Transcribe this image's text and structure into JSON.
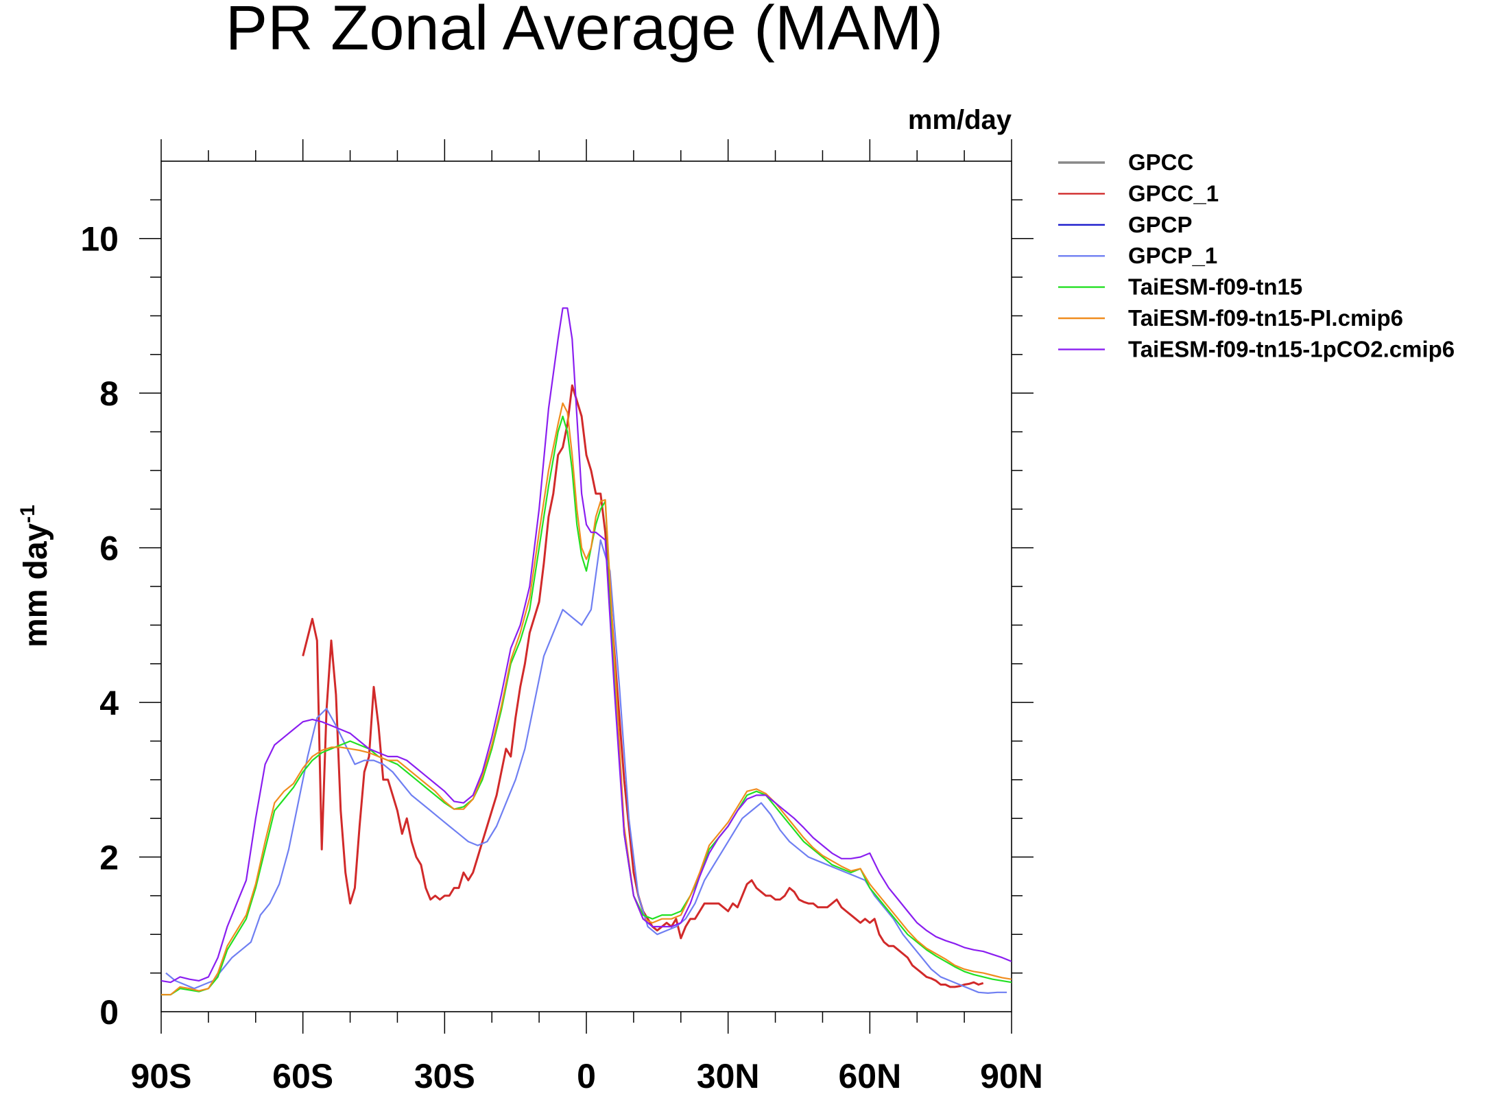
{
  "chart_data": {
    "type": "line",
    "title": "PR Zonal Average (MAM)",
    "units_label": "mm/day",
    "ylabel": "mm day",
    "ylabel_superscript": "-1",
    "xlim": [
      -90,
      90
    ],
    "ylim": [
      0,
      11
    ],
    "x_ticks": [
      {
        "value": -90,
        "label": "90S"
      },
      {
        "value": -60,
        "label": "60S"
      },
      {
        "value": -30,
        "label": "30S"
      },
      {
        "value": 0,
        "label": "0"
      },
      {
        "value": 30,
        "label": "30N"
      },
      {
        "value": 60,
        "label": "60N"
      },
      {
        "value": 90,
        "label": "90N"
      }
    ],
    "y_ticks": [
      {
        "value": 0,
        "label": "0"
      },
      {
        "value": 2,
        "label": "2"
      },
      {
        "value": 4,
        "label": "4"
      },
      {
        "value": 6,
        "label": "6"
      },
      {
        "value": 8,
        "label": "8"
      },
      {
        "value": 10,
        "label": "10"
      }
    ],
    "legend_position": "top-right outside",
    "series": [
      {
        "name": "GPCC",
        "color": "#888888",
        "x": [],
        "y": []
      },
      {
        "name": "GPCC_1",
        "color": "#d12a2a",
        "x": [
          -60,
          -58,
          -57,
          -56,
          -55,
          -54,
          -53,
          -52,
          -51,
          -50,
          -49,
          -48,
          -47,
          -46,
          -45,
          -44,
          -43,
          -42,
          -41,
          -40,
          -39,
          -38,
          -37,
          -36,
          -35,
          -34,
          -33,
          -32,
          -31,
          -30,
          -29,
          -28,
          -27,
          -26,
          -25,
          -24,
          -23,
          -22,
          -21,
          -20,
          -19,
          -18,
          -17,
          -16,
          -15,
          -14,
          -13,
          -12,
          -11,
          -10,
          -9,
          -8,
          -7,
          -6,
          -5,
          -4,
          -3,
          -2,
          -1,
          0,
          1,
          2,
          3,
          4,
          5,
          6,
          7,
          8,
          9,
          10,
          11,
          12,
          13,
          14,
          15,
          16,
          17,
          18,
          19,
          20,
          21,
          22,
          23,
          24,
          25,
          26,
          27,
          28,
          29,
          30,
          31,
          32,
          33,
          34,
          35,
          36,
          37,
          38,
          39,
          40,
          41,
          42,
          43,
          44,
          45,
          46,
          47,
          48,
          49,
          50,
          51,
          52,
          53,
          54,
          55,
          56,
          57,
          58,
          59,
          60,
          61,
          62,
          63,
          64,
          65,
          66,
          67,
          68,
          69,
          70,
          71,
          72,
          73,
          74,
          75,
          76,
          77,
          78,
          79,
          80,
          81,
          82,
          83,
          84
        ],
        "y": [
          4.6,
          5.08,
          4.8,
          2.1,
          3.9,
          4.8,
          4.1,
          2.6,
          1.8,
          1.4,
          1.6,
          2.4,
          3.1,
          3.3,
          4.2,
          3.7,
          3.0,
          3.0,
          2.8,
          2.6,
          2.3,
          2.5,
          2.2,
          2.0,
          1.9,
          1.6,
          1.45,
          1.5,
          1.45,
          1.5,
          1.5,
          1.6,
          1.6,
          1.8,
          1.7,
          1.8,
          2.0,
          2.2,
          2.4,
          2.6,
          2.8,
          3.1,
          3.4,
          3.3,
          3.8,
          4.2,
          4.5,
          4.9,
          5.1,
          5.3,
          5.8,
          6.4,
          6.7,
          7.2,
          7.3,
          7.6,
          8.1,
          7.9,
          7.7,
          7.2,
          7.0,
          6.7,
          6.7,
          6.2,
          5.4,
          4.6,
          3.8,
          3.0,
          2.4,
          1.8,
          1.5,
          1.3,
          1.2,
          1.1,
          1.05,
          1.1,
          1.15,
          1.1,
          1.2,
          0.95,
          1.1,
          1.2,
          1.2,
          1.3,
          1.4,
          1.4,
          1.4,
          1.4,
          1.35,
          1.3,
          1.4,
          1.35,
          1.5,
          1.65,
          1.7,
          1.6,
          1.55,
          1.5,
          1.5,
          1.45,
          1.45,
          1.5,
          1.6,
          1.55,
          1.45,
          1.42,
          1.4,
          1.4,
          1.35,
          1.35,
          1.35,
          1.4,
          1.45,
          1.35,
          1.3,
          1.25,
          1.2,
          1.15,
          1.2,
          1.15,
          1.2,
          1.0,
          0.9,
          0.85,
          0.85,
          0.8,
          0.75,
          0.7,
          0.6,
          0.55,
          0.5,
          0.45,
          0.43,
          0.4,
          0.35,
          0.35,
          0.32,
          0.32,
          0.33,
          0.35,
          0.36,
          0.38,
          0.35,
          0.37
        ]
      },
      {
        "name": "GPCP",
        "color": "#1a1acc",
        "x": [],
        "y": []
      },
      {
        "name": "GPCP_1",
        "color": "#6f7ff2",
        "x": [
          -89,
          -87,
          -85,
          -83,
          -81,
          -79,
          -77,
          -75,
          -73,
          -71,
          -69,
          -67,
          -65,
          -63,
          -61,
          -59,
          -57,
          -55,
          -53,
          -51,
          -49,
          -47,
          -45,
          -43,
          -41,
          -39,
          -37,
          -35,
          -33,
          -31,
          -29,
          -27,
          -25,
          -23,
          -21,
          -19,
          -17,
          -15,
          -13,
          -11,
          -9,
          -7,
          -5,
          -3,
          -1,
          1,
          3,
          5,
          7,
          9,
          11,
          13,
          15,
          17,
          19,
          21,
          23,
          25,
          27,
          29,
          31,
          33,
          35,
          37,
          39,
          41,
          43,
          45,
          47,
          49,
          51,
          53,
          55,
          57,
          59,
          61,
          63,
          65,
          67,
          69,
          71,
          73,
          75,
          77,
          79,
          81,
          83,
          85,
          87,
          89
        ],
        "y": [
          0.5,
          0.4,
          0.35,
          0.3,
          0.35,
          0.4,
          0.55,
          0.7,
          0.8,
          0.9,
          1.25,
          1.4,
          1.65,
          2.1,
          2.7,
          3.3,
          3.8,
          3.92,
          3.7,
          3.45,
          3.2,
          3.25,
          3.25,
          3.2,
          3.1,
          2.95,
          2.8,
          2.7,
          2.6,
          2.5,
          2.4,
          2.3,
          2.2,
          2.15,
          2.2,
          2.4,
          2.7,
          3.0,
          3.4,
          4.0,
          4.6,
          4.9,
          5.2,
          5.1,
          5.0,
          5.2,
          6.1,
          5.7,
          4.2,
          2.5,
          1.5,
          1.1,
          1.0,
          1.05,
          1.1,
          1.2,
          1.4,
          1.7,
          1.9,
          2.1,
          2.3,
          2.5,
          2.6,
          2.7,
          2.55,
          2.35,
          2.2,
          2.1,
          2.0,
          1.95,
          1.9,
          1.85,
          1.8,
          1.75,
          1.7,
          1.5,
          1.35,
          1.2,
          1.0,
          0.85,
          0.7,
          0.55,
          0.45,
          0.4,
          0.35,
          0.3,
          0.25,
          0.24,
          0.25,
          0.25
        ]
      },
      {
        "name": "TaiESM-f09-tn15",
        "color": "#22e022",
        "x": [
          -90,
          -88,
          -86,
          -84,
          -82,
          -80,
          -78,
          -76,
          -74,
          -72,
          -70,
          -68,
          -66,
          -64,
          -62,
          -60,
          -58,
          -56,
          -54,
          -52,
          -50,
          -48,
          -46,
          -44,
          -42,
          -40,
          -38,
          -36,
          -34,
          -32,
          -30,
          -28,
          -26,
          -24,
          -22,
          -20,
          -18,
          -16,
          -14,
          -12,
          -10,
          -8,
          -6,
          -5,
          -4,
          -3,
          -2,
          -1,
          0,
          1,
          2,
          3,
          4,
          6,
          8,
          10,
          12,
          14,
          16,
          18,
          20,
          22,
          24,
          26,
          28,
          30,
          32,
          34,
          36,
          38,
          40,
          42,
          44,
          46,
          48,
          50,
          52,
          54,
          56,
          58,
          60,
          62,
          64,
          66,
          68,
          70,
          72,
          74,
          76,
          78,
          80,
          82,
          84,
          86,
          88,
          90
        ],
        "y": [
          0.22,
          0.22,
          0.3,
          0.28,
          0.26,
          0.3,
          0.45,
          0.8,
          1.0,
          1.2,
          1.6,
          2.1,
          2.6,
          2.75,
          2.9,
          3.1,
          3.25,
          3.35,
          3.4,
          3.45,
          3.5,
          3.45,
          3.4,
          3.3,
          3.25,
          3.2,
          3.1,
          3.0,
          2.9,
          2.8,
          2.7,
          2.62,
          2.65,
          2.75,
          3.0,
          3.4,
          3.9,
          4.5,
          4.8,
          5.2,
          6.0,
          6.8,
          7.5,
          7.7,
          7.5,
          7.0,
          6.3,
          5.9,
          5.7,
          6.0,
          6.3,
          6.5,
          6.6,
          4.3,
          2.3,
          1.5,
          1.25,
          1.2,
          1.25,
          1.25,
          1.3,
          1.5,
          1.75,
          2.1,
          2.25,
          2.4,
          2.6,
          2.8,
          2.85,
          2.8,
          2.65,
          2.5,
          2.35,
          2.2,
          2.1,
          2.0,
          1.9,
          1.85,
          1.8,
          1.85,
          1.6,
          1.45,
          1.3,
          1.15,
          1.0,
          0.9,
          0.8,
          0.72,
          0.65,
          0.58,
          0.52,
          0.48,
          0.45,
          0.42,
          0.4,
          0.38
        ]
      },
      {
        "name": "TaiESM-f09-tn15-PI.cmip6",
        "color": "#f08c1e",
        "x": [
          -90,
          -88,
          -86,
          -84,
          -82,
          -80,
          -78,
          -76,
          -74,
          -72,
          -70,
          -68,
          -66,
          -64,
          -62,
          -60,
          -58,
          -56,
          -54,
          -52,
          -50,
          -48,
          -46,
          -44,
          -42,
          -40,
          -38,
          -36,
          -34,
          -32,
          -30,
          -28,
          -26,
          -24,
          -22,
          -20,
          -18,
          -16,
          -14,
          -12,
          -10,
          -8,
          -6,
          -5,
          -4,
          -3,
          -2,
          -1,
          0,
          1,
          2,
          3,
          4,
          6,
          8,
          10,
          12,
          14,
          16,
          18,
          20,
          22,
          24,
          26,
          28,
          30,
          32,
          34,
          36,
          38,
          40,
          42,
          44,
          46,
          48,
          50,
          52,
          54,
          56,
          58,
          60,
          62,
          64,
          66,
          68,
          70,
          72,
          74,
          76,
          78,
          80,
          82,
          84,
          86,
          88,
          90
        ],
        "y": [
          0.22,
          0.22,
          0.32,
          0.3,
          0.27,
          0.3,
          0.5,
          0.85,
          1.05,
          1.25,
          1.65,
          2.2,
          2.7,
          2.85,
          2.95,
          3.15,
          3.3,
          3.38,
          3.42,
          3.42,
          3.4,
          3.38,
          3.35,
          3.3,
          3.25,
          3.25,
          3.15,
          3.05,
          2.95,
          2.85,
          2.72,
          2.62,
          2.62,
          2.75,
          3.05,
          3.45,
          3.95,
          4.55,
          4.9,
          5.35,
          6.2,
          7.0,
          7.6,
          7.87,
          7.75,
          7.2,
          6.5,
          6.0,
          5.85,
          6.0,
          6.4,
          6.6,
          6.62,
          4.5,
          2.4,
          1.5,
          1.2,
          1.15,
          1.2,
          1.2,
          1.25,
          1.5,
          1.8,
          2.15,
          2.3,
          2.45,
          2.65,
          2.85,
          2.88,
          2.82,
          2.7,
          2.55,
          2.4,
          2.25,
          2.12,
          2.02,
          1.95,
          1.88,
          1.82,
          1.85,
          1.65,
          1.5,
          1.35,
          1.2,
          1.05,
          0.92,
          0.82,
          0.75,
          0.68,
          0.6,
          0.55,
          0.52,
          0.5,
          0.47,
          0.44,
          0.42
        ]
      },
      {
        "name": "TaiESM-f09-tn15-1pCO2.cmip6",
        "color": "#8a1ef0",
        "x": [
          -90,
          -88,
          -86,
          -84,
          -82,
          -80,
          -78,
          -76,
          -74,
          -72,
          -70,
          -68,
          -66,
          -64,
          -62,
          -60,
          -58,
          -56,
          -54,
          -52,
          -50,
          -48,
          -46,
          -44,
          -42,
          -40,
          -38,
          -36,
          -34,
          -32,
          -30,
          -28,
          -26,
          -24,
          -22,
          -20,
          -18,
          -16,
          -14,
          -12,
          -10,
          -8,
          -6,
          -5,
          -4,
          -3,
          -2,
          -1,
          0,
          1,
          2,
          3,
          4,
          6,
          8,
          10,
          12,
          14,
          16,
          18,
          20,
          22,
          24,
          26,
          28,
          30,
          32,
          34,
          36,
          38,
          40,
          42,
          44,
          46,
          48,
          50,
          52,
          54,
          56,
          58,
          60,
          62,
          64,
          66,
          68,
          70,
          72,
          74,
          76,
          78,
          80,
          82,
          84,
          86,
          88,
          90
        ],
        "y": [
          0.4,
          0.38,
          0.45,
          0.42,
          0.4,
          0.45,
          0.7,
          1.1,
          1.4,
          1.7,
          2.5,
          3.2,
          3.45,
          3.55,
          3.65,
          3.75,
          3.78,
          3.75,
          3.7,
          3.65,
          3.6,
          3.5,
          3.4,
          3.35,
          3.3,
          3.3,
          3.25,
          3.15,
          3.05,
          2.95,
          2.85,
          2.72,
          2.7,
          2.8,
          3.1,
          3.55,
          4.1,
          4.7,
          5.0,
          5.5,
          6.5,
          7.8,
          8.7,
          9.1,
          9.1,
          8.7,
          7.7,
          6.7,
          6.3,
          6.2,
          6.2,
          6.15,
          6.1,
          4.1,
          2.3,
          1.5,
          1.2,
          1.1,
          1.1,
          1.1,
          1.15,
          1.4,
          1.75,
          2.05,
          2.25,
          2.4,
          2.6,
          2.75,
          2.8,
          2.8,
          2.7,
          2.6,
          2.5,
          2.38,
          2.25,
          2.15,
          2.05,
          1.98,
          1.98,
          2.0,
          2.05,
          1.8,
          1.6,
          1.45,
          1.3,
          1.15,
          1.05,
          0.97,
          0.92,
          0.88,
          0.83,
          0.8,
          0.78,
          0.74,
          0.7,
          0.65
        ]
      }
    ]
  }
}
